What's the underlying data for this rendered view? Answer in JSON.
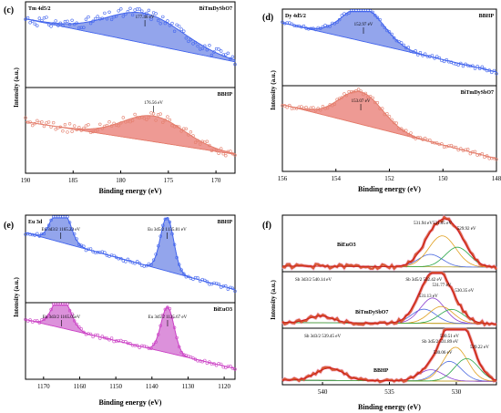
{
  "colors": {
    "blue_line": "#4466ee",
    "blue_fill": "#3a5bdc",
    "pink_line": "#e47f6d",
    "pink_fill": "#e0473d",
    "magenta_line": "#cc44c6",
    "magenta_fill": "#c036be",
    "red_xps_line": "#cc1b1b",
    "red_xps_points": "#d85a36",
    "noise_pink": "#f3a8d4",
    "axis": "#000000"
  },
  "chart_data": [
    {
      "type": "line",
      "panel_label": "(c)",
      "xlabel": "Binding energy (eV)",
      "ylabel": "Intensity (a.u.)",
      "xlim": [
        190,
        168
      ],
      "xticks": [
        190,
        185,
        180,
        175,
        170
      ],
      "xtick_labels": [
        "190",
        "185",
        "180",
        "175",
        "170"
      ],
      "grid": false,
      "subpanels": [
        {
          "corner_label": "Tm 4d5/2",
          "sample": "BiTmDySbO7",
          "peak_label": "177.46 eV",
          "peak_center": 177.46,
          "peak_width": 4.0,
          "peak_height": 0.35,
          "baseline": [
            0.8,
            0.3
          ],
          "noise": 0.06,
          "color_key": "blue"
        },
        {
          "corner_label": "",
          "sample": "BBHP",
          "peak_label": "176.56 eV",
          "peak_center": 176.56,
          "peak_width": 3.2,
          "peak_height": 0.3,
          "baseline": [
            0.6,
            0.22
          ],
          "noise": 0.05,
          "color_key": "pink"
        }
      ]
    },
    {
      "type": "line",
      "panel_label": "(d)",
      "xlabel": "Binding energy (eV)",
      "ylabel": "Intensity (a.u.)",
      "xlim": [
        156,
        148
      ],
      "xticks": [
        156,
        154,
        152,
        150,
        148
      ],
      "xtick_labels": [
        "156",
        "154",
        "152",
        "150",
        "148"
      ],
      "grid": false,
      "subpanels": [
        {
          "corner_label": "Dy 4d5/2",
          "sample": "BBHP",
          "peak_label": "152.97 eV",
          "peak_center": 152.97,
          "peak_width": 0.75,
          "peak_height": 0.45,
          "baseline": [
            0.82,
            0.18
          ],
          "noise": 0.025,
          "color_key": "blue"
        },
        {
          "corner_label": "",
          "sample": "BiTmDySbO7",
          "peak_label": "153.07 eV",
          "peak_center": 153.07,
          "peak_width": 0.8,
          "peak_height": 0.38,
          "baseline": [
            0.78,
            0.15
          ],
          "noise": 0.025,
          "color_key": "pink"
        }
      ]
    },
    {
      "type": "line",
      "panel_label": "(e)",
      "xlabel": "Binding energy (eV)",
      "ylabel": "Intensity (a.u.)",
      "xlim": [
        1175,
        1117
      ],
      "xticks": [
        1170,
        1160,
        1150,
        1140,
        1130,
        1120
      ],
      "xtick_labels": [
        "1170",
        "1160",
        "1150",
        "1140",
        "1130",
        "1120"
      ],
      "grid": false,
      "subpanels": [
        {
          "corner_label": "Eu 3d",
          "sample": "BBHP",
          "peaks": [
            {
              "label": "Eu 3d3/2 1165.23 eV",
              "center": 1165.23,
              "width": 2.3,
              "height": 0.45
            },
            {
              "label": "Eu 3d5/2 1135.81 eV",
              "center": 1135.81,
              "width": 1.8,
              "height": 0.62
            }
          ],
          "baseline": [
            0.8,
            0.15
          ],
          "noise": 0.02,
          "color_key": "blue"
        },
        {
          "corner_label": "",
          "sample": "BiEuO3",
          "peaks": [
            {
              "label": "Eu 3d3/2 1165.05eV",
              "center": 1165.05,
              "width": 2.4,
              "height": 0.42
            },
            {
              "label": "Eu 3d5/2 1135.67 eV",
              "center": 1135.67,
              "width": 1.8,
              "height": 0.6
            }
          ],
          "baseline": [
            0.78,
            0.14
          ],
          "noise": 0.02,
          "color_key": "magenta"
        }
      ]
    },
    {
      "type": "line",
      "panel_label": "(f)",
      "xlabel": "Binding energy (eV)",
      "ylabel": "Intensity (a.u.)",
      "xlim": [
        543,
        527
      ],
      "xticks": [
        540,
        535,
        530
      ],
      "xtick_labels": [
        "540",
        "535",
        "530"
      ],
      "grid": false,
      "subpanels": [
        {
          "sample": "BiEuO3",
          "peaks": [
            {
              "label": "531.94 eV",
              "center": 531.94,
              "width": 0.9,
              "height": 0.22,
              "color": "#4f6de0"
            },
            {
              "label": "531.05 eV",
              "center": 531.05,
              "width": 1.0,
              "height": 0.55,
              "color": "#e0a020"
            },
            {
              "label": "529.92 eV",
              "center": 529.92,
              "width": 0.9,
              "height": 0.35,
              "color": "#2ea84a"
            }
          ],
          "baseline": [
            0.1,
            0.08
          ],
          "noise": 0.04
        },
        {
          "sample": "BiTmDySbO7",
          "peaks": [
            {
              "label": "Sb 3d3/2 540.14 eV",
              "center": 540.14,
              "width": 0.9,
              "height": 0.12,
              "color": "#c8a020"
            },
            {
              "label": "Sb 3d5/2 532.42 eV",
              "center": 532.42,
              "width": 0.9,
              "height": 0.25,
              "color": "#4f6de0"
            },
            {
              "label": "531.77 eV",
              "center": 531.77,
              "width": 0.9,
              "height": 0.45,
              "color": "#8a3fd0"
            },
            {
              "label": "531.13 eV",
              "center": 531.13,
              "width": 0.9,
              "height": 0.3,
              "color": "#e0a020"
            },
            {
              "label": "530.35 eV",
              "center": 530.35,
              "width": 0.9,
              "height": 0.25,
              "color": "#2ea84a"
            }
          ],
          "baseline": [
            0.1,
            0.08
          ],
          "noise": 0.035
        },
        {
          "sample": "BBHP",
          "peaks": [
            {
              "label": "Sb 3d3/2 539.45 eV",
              "center": 539.45,
              "width": 1.0,
              "height": 0.22,
              "color": "#c8a020"
            },
            {
              "label": "530.51 eV",
              "center": 530.51,
              "width": 0.9,
              "height": 0.35,
              "color": "#4f6de0"
            },
            {
              "label": "Sb 3d5/2 531.89 eV",
              "center": 531.89,
              "width": 0.9,
              "height": 0.2,
              "color": "#8a3fd0"
            },
            {
              "label": "530.06 eV",
              "center": 530.06,
              "width": 0.9,
              "height": 0.6,
              "color": "#e0a020"
            },
            {
              "label": "529.22 eV",
              "center": 529.22,
              "width": 0.9,
              "height": 0.4,
              "color": "#2ea84a"
            }
          ],
          "baseline": [
            0.08,
            0.06
          ],
          "noise": 0.03
        }
      ]
    }
  ]
}
